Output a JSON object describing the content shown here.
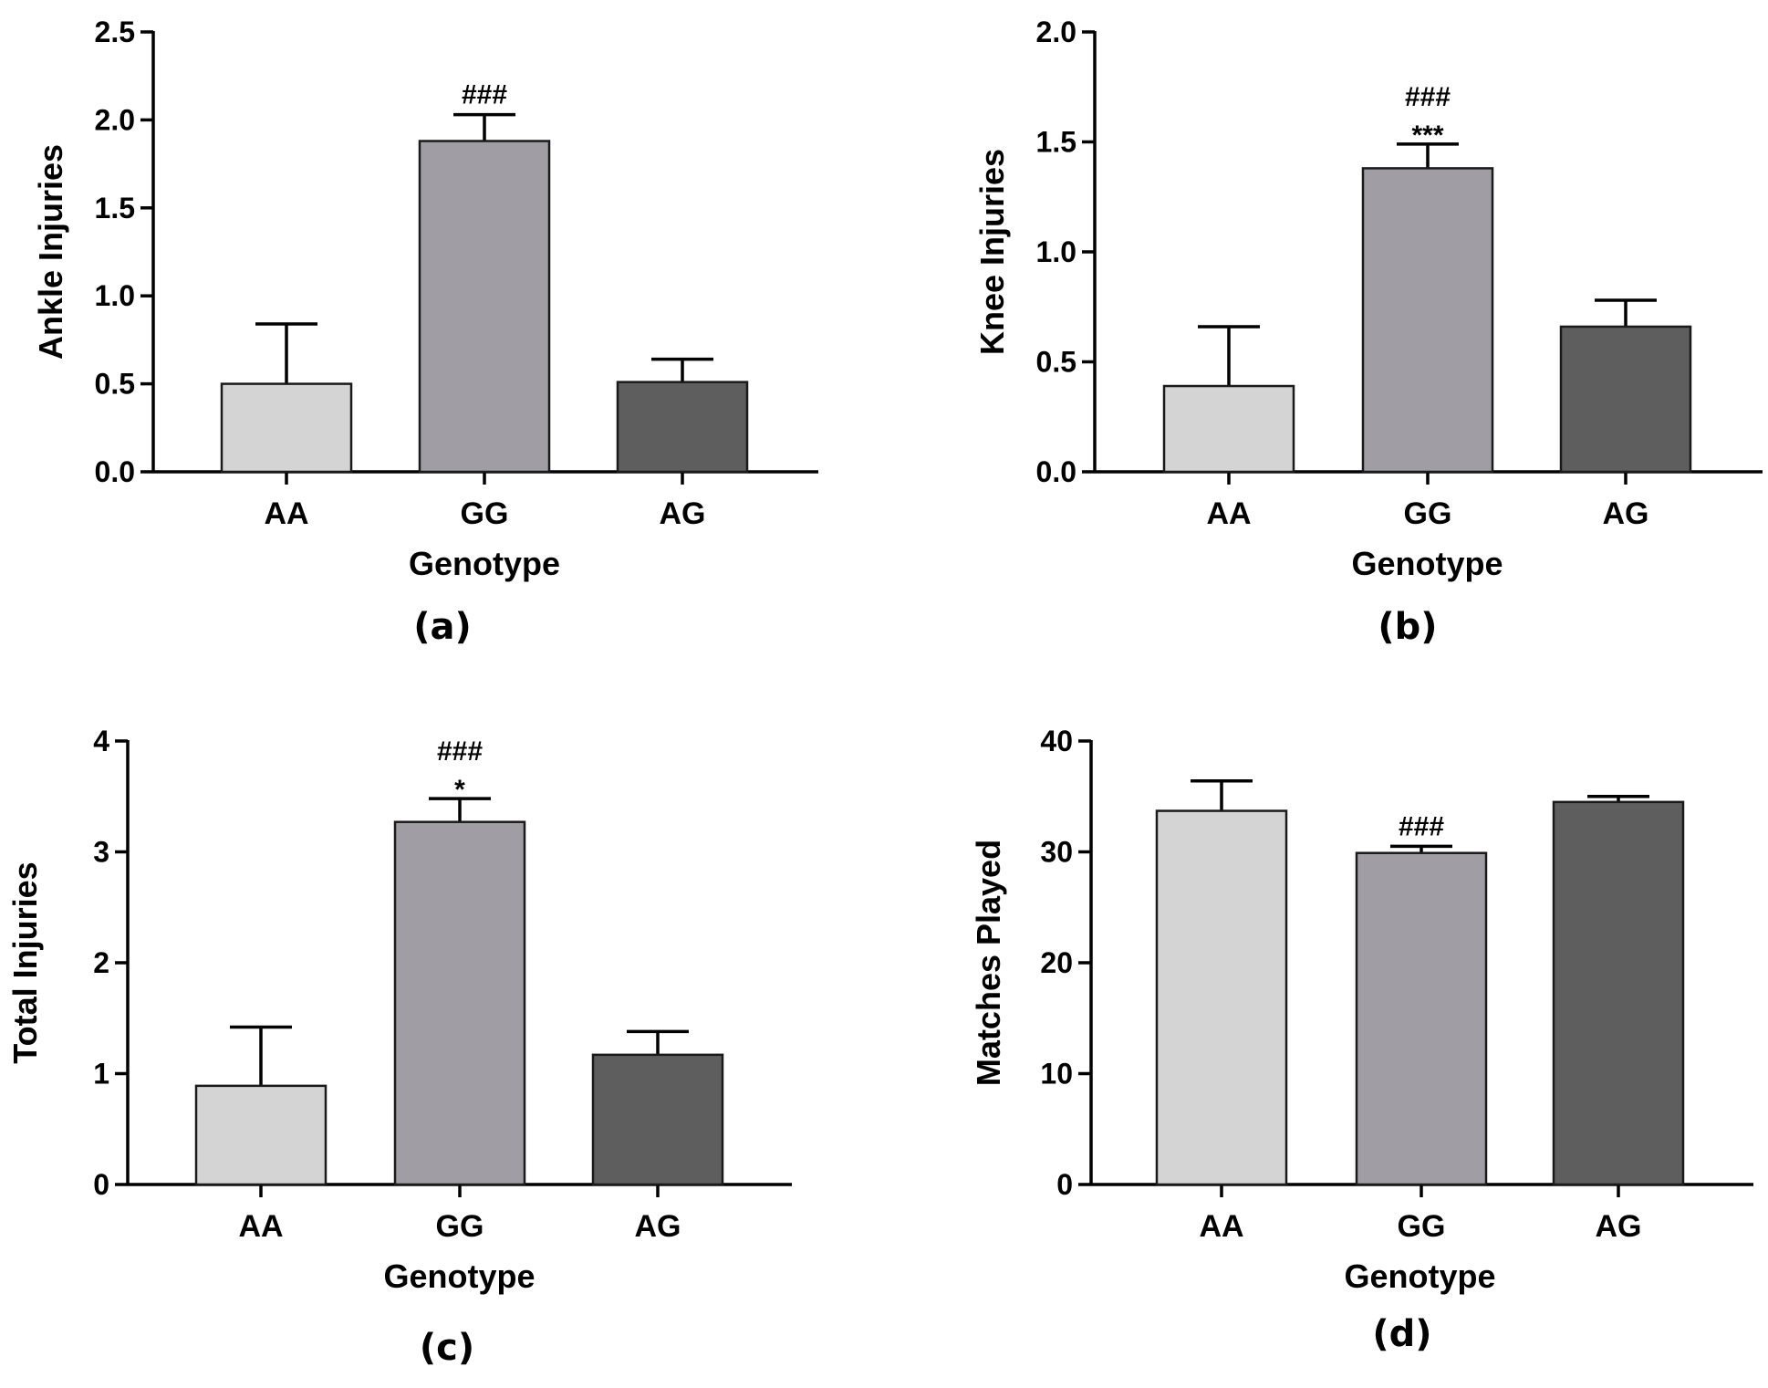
{
  "chart_data": [
    {
      "type": "bar",
      "panel_label": "(a)",
      "categories": [
        "AA",
        "GG",
        "AG"
      ],
      "values": [
        0.5,
        1.88,
        0.51
      ],
      "errors": [
        0.34,
        0.15,
        0.13
      ],
      "annotations": [
        [],
        [
          "###"
        ],
        []
      ],
      "xlabel": "Genotype",
      "ylabel": "Ankle Injuries",
      "ylim": [
        0,
        2.5
      ],
      "yticks": [
        "0.0",
        "0.5",
        "1.0",
        "1.5",
        "2.0",
        "2.5"
      ],
      "colors": [
        "#d4d4d4",
        "#a09ea4",
        "#5e5e5e"
      ]
    },
    {
      "type": "bar",
      "panel_label": "(b)",
      "categories": [
        "AA",
        "GG",
        "AG"
      ],
      "values": [
        0.39,
        1.38,
        0.66
      ],
      "errors": [
        0.27,
        0.11,
        0.12
      ],
      "annotations": [
        [],
        [
          "***",
          "###"
        ],
        []
      ],
      "xlabel": "Genotype",
      "ylabel": "Knee Injuries",
      "ylim": [
        0,
        2.0
      ],
      "yticks": [
        "0.0",
        "0.5",
        "1.0",
        "1.5",
        "2.0"
      ],
      "colors": [
        "#d4d4d4",
        "#a09ea4",
        "#5e5e5e"
      ]
    },
    {
      "type": "bar",
      "panel_label": "(c)",
      "categories": [
        "AA",
        "GG",
        "AG"
      ],
      "values": [
        0.89,
        3.27,
        1.17
      ],
      "errors": [
        0.53,
        0.21,
        0.21
      ],
      "annotations": [
        [],
        [
          "*",
          "###"
        ],
        []
      ],
      "xlabel": "Genotype",
      "ylabel": "Total Injuries",
      "ylim": [
        0,
        4
      ],
      "yticks": [
        "0",
        "1",
        "2",
        "3",
        "4"
      ],
      "colors": [
        "#d4d4d4",
        "#a09ea4",
        "#5e5e5e"
      ]
    },
    {
      "type": "bar",
      "panel_label": "(d)",
      "categories": [
        "AA",
        "GG",
        "AG"
      ],
      "values": [
        33.7,
        29.9,
        34.5
      ],
      "errors": [
        2.7,
        0.6,
        0.5
      ],
      "annotations": [
        [],
        [
          "###"
        ],
        []
      ],
      "xlabel": "Genotype",
      "ylabel": "Matches Played",
      "ylim": [
        0,
        40
      ],
      "yticks": [
        "0",
        "10",
        "20",
        "30",
        "40"
      ],
      "colors": [
        "#d4d4d4",
        "#a09ea4",
        "#5e5e5e"
      ]
    }
  ]
}
